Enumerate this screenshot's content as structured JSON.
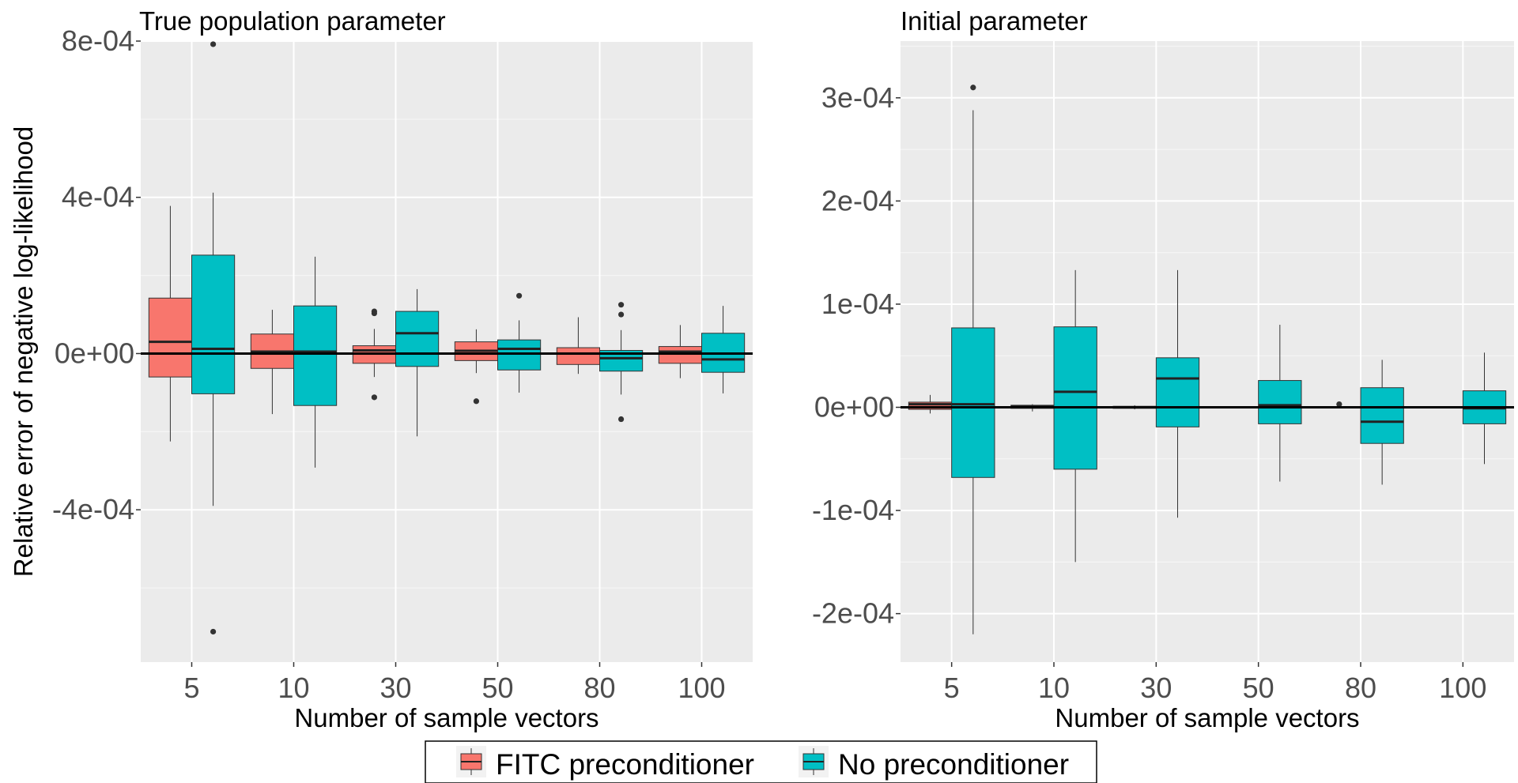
{
  "chart_data": [
    {
      "type": "box",
      "title": "True population parameter",
      "xlabel": "Number of sample vectors",
      "ylabel": "Relative error of negative log-likelihood",
      "categories": [
        "5",
        "10",
        "30",
        "50",
        "80",
        "100"
      ],
      "ylim": [
        -0.00079,
        0.0008
      ],
      "yticks": [
        {
          "value": 0.0008,
          "label": "8e-04"
        },
        {
          "value": 0.0004,
          "label": "4e-04"
        },
        {
          "value": 0.0,
          "label": "0e+00"
        },
        {
          "value": -0.0004,
          "label": "-4e-04"
        }
      ],
      "reference_line": 0,
      "grid": true,
      "series": [
        {
          "name": "FITC preconditioner",
          "color": "#F8766D",
          "boxes": [
            {
              "min": -0.000225,
              "q1": -6e-05,
              "median": 3e-05,
              "q3": 0.000142,
              "max": 0.000378,
              "outliers": []
            },
            {
              "min": -0.000155,
              "q1": -3.8e-05,
              "median": 5e-06,
              "q3": 5e-05,
              "max": 0.000112,
              "outliers": []
            },
            {
              "min": -6e-05,
              "q1": -2.5e-05,
              "median": 8e-06,
              "q3": 2e-05,
              "max": 6.3e-05,
              "outliers": [
                0.000103,
                0.000108,
                -0.000112
              ]
            },
            {
              "min": -5e-05,
              "q1": -1.8e-05,
              "median": 7e-06,
              "q3": 3e-05,
              "max": 6.2e-05,
              "outliers": [
                -0.000122
              ]
            },
            {
              "min": -5.2e-05,
              "q1": -2.8e-05,
              "median": 0.0,
              "q3": 1.5e-05,
              "max": 9.3e-05,
              "outliers": []
            },
            {
              "min": -6.3e-05,
              "q1": -2.5e-05,
              "median": 5e-06,
              "q3": 1.8e-05,
              "max": 7.3e-05,
              "outliers": []
            }
          ]
        },
        {
          "name": "No preconditioner",
          "color": "#00BFC4",
          "boxes": [
            {
              "min": -0.00039,
              "q1": -0.000103,
              "median": 1.2e-05,
              "q3": 0.000252,
              "max": 0.000412,
              "outliers": [
                0.000792,
                -0.000712
              ]
            },
            {
              "min": -0.000292,
              "q1": -0.000133,
              "median": 5e-06,
              "q3": 0.000122,
              "max": 0.000248,
              "outliers": []
            },
            {
              "min": -0.000212,
              "q1": -3.3e-05,
              "median": 5.2e-05,
              "q3": 0.000108,
              "max": 0.000165,
              "outliers": []
            },
            {
              "min": -0.0001,
              "q1": -4.2e-05,
              "median": 1.2e-05,
              "q3": 3.5e-05,
              "max": 8.5e-05,
              "outliers": [
                0.000148
              ]
            },
            {
              "min": -0.000105,
              "q1": -4.5e-05,
              "median": -1.2e-05,
              "q3": 8e-06,
              "max": 6e-05,
              "outliers": [
                0.000125,
                0.0001,
                -0.000168
              ]
            },
            {
              "min": -0.000102,
              "q1": -4.8e-05,
              "median": -1.5e-05,
              "q3": 5.2e-05,
              "max": 0.000122,
              "outliers": []
            }
          ]
        }
      ]
    },
    {
      "type": "box",
      "title": "Initial parameter",
      "xlabel": "Number of sample vectors",
      "ylabel": "",
      "categories": [
        "5",
        "10",
        "30",
        "50",
        "80",
        "100"
      ],
      "ylim": [
        -0.000247,
        0.000355
      ],
      "yticks": [
        {
          "value": 0.0003,
          "label": "3e-04"
        },
        {
          "value": 0.0002,
          "label": "2e-04"
        },
        {
          "value": 0.0001,
          "label": "1e-04"
        },
        {
          "value": 0.0,
          "label": "0e+00"
        },
        {
          "value": -0.0001,
          "label": "-1e-04"
        },
        {
          "value": -0.0002,
          "label": "-2e-04"
        }
      ],
      "reference_line": 0,
      "grid": true,
      "series": [
        {
          "name": "FITC preconditioner",
          "color": "#F8766D",
          "boxes": [
            {
              "min": -6e-06,
              "q1": -2e-06,
              "median": 3e-06,
              "q3": 5e-06,
              "max": 1.2e-05,
              "outliers": []
            },
            {
              "min": -4e-06,
              "q1": -1e-06,
              "median": 1e-06,
              "q3": 2e-06,
              "max": 3e-06,
              "outliers": []
            },
            {
              "min": -2e-06,
              "q1": -1e-06,
              "median": 0.0,
              "q3": 1e-06,
              "max": 2e-06,
              "outliers": []
            },
            {
              "min": -1e-06,
              "q1": -5e-07,
              "median": 0.0,
              "q3": 5e-07,
              "max": 1e-06,
              "outliers": []
            },
            {
              "min": -1e-06,
              "q1": -5e-07,
              "median": 0.0,
              "q3": 5e-07,
              "max": 1e-06,
              "outliers": [
                3e-06
              ]
            },
            {
              "min": -1e-06,
              "q1": -5e-07,
              "median": 0.0,
              "q3": 5e-07,
              "max": 1e-06,
              "outliers": []
            }
          ]
        },
        {
          "name": "No preconditioner",
          "color": "#00BFC4",
          "boxes": [
            {
              "min": -0.00022,
              "q1": -6.8e-05,
              "median": 3e-06,
              "q3": 7.7e-05,
              "max": 0.000288,
              "outliers": [
                0.00031
              ]
            },
            {
              "min": -0.00015,
              "q1": -6e-05,
              "median": 1.5e-05,
              "q3": 7.8e-05,
              "max": 0.000133,
              "outliers": []
            },
            {
              "min": -0.000107,
              "q1": -1.9e-05,
              "median": 2.8e-05,
              "q3": 4.8e-05,
              "max": 0.000133,
              "outliers": []
            },
            {
              "min": -7.2e-05,
              "q1": -1.6e-05,
              "median": 2e-06,
              "q3": 2.6e-05,
              "max": 8e-05,
              "outliers": []
            },
            {
              "min": -7.5e-05,
              "q1": -3.5e-05,
              "median": -1.4e-05,
              "q3": 1.9e-05,
              "max": 4.6e-05,
              "outliers": []
            },
            {
              "min": -5.5e-05,
              "q1": -1.6e-05,
              "median": -1e-06,
              "q3": 1.6e-05,
              "max": 5.3e-05,
              "outliers": []
            }
          ]
        }
      ]
    }
  ],
  "legend": {
    "position": "bottom",
    "items": [
      {
        "label": "FITC preconditioner",
        "color": "#F8766D"
      },
      {
        "label": "No preconditioner",
        "color": "#00BFC4"
      }
    ]
  }
}
